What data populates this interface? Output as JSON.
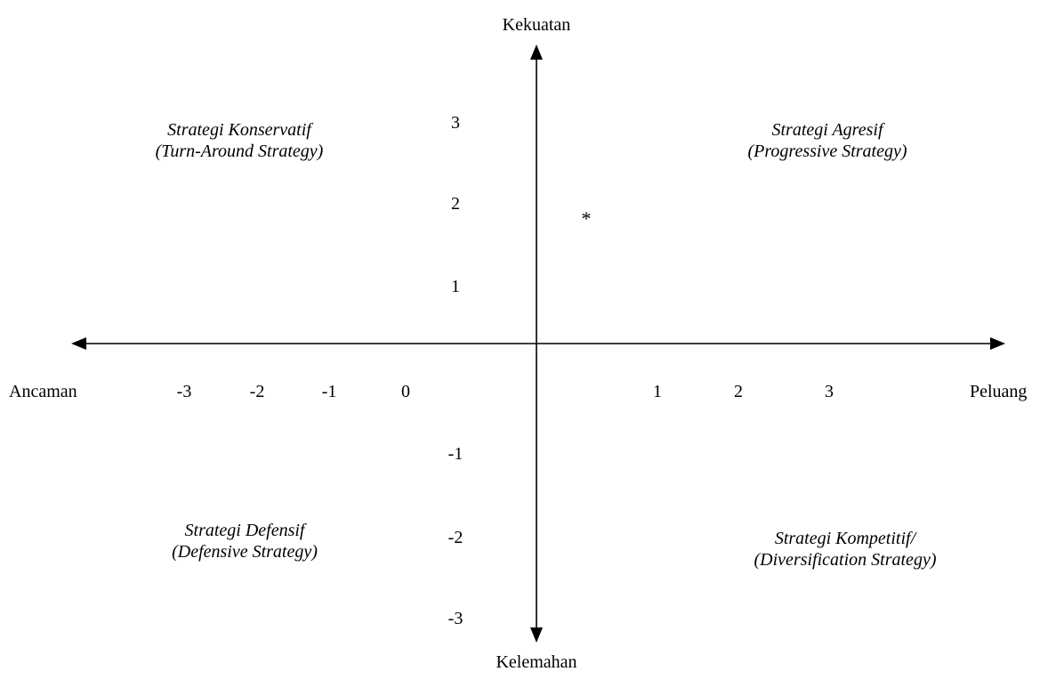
{
  "axes": {
    "top_label": "Kekuatan",
    "bottom_label": "Kelemahan",
    "left_label": "Ancaman",
    "right_label": "Peluang"
  },
  "x_ticks_negative": [
    "-3",
    "-2",
    "-1",
    "0"
  ],
  "x_ticks_positive": [
    "1",
    "2",
    "3"
  ],
  "y_ticks_positive": [
    "3",
    "2",
    "1"
  ],
  "y_ticks_negative": [
    "-1",
    "-2",
    "-3"
  ],
  "quadrants": {
    "top_left": {
      "line1": "Strategi Konservatif",
      "line2": "(Turn-Around Strategy)"
    },
    "top_right": {
      "line1": "Strategi Agresif",
      "line2": "(Progressive Strategy)"
    },
    "bottom_left": {
      "line1": "Strategi Defensif",
      "line2": "(Defensive Strategy)"
    },
    "bottom_right": {
      "line1": "Strategi Kompetitif/",
      "line2": "(Diversification Strategy)"
    }
  },
  "position_marker": "*"
}
